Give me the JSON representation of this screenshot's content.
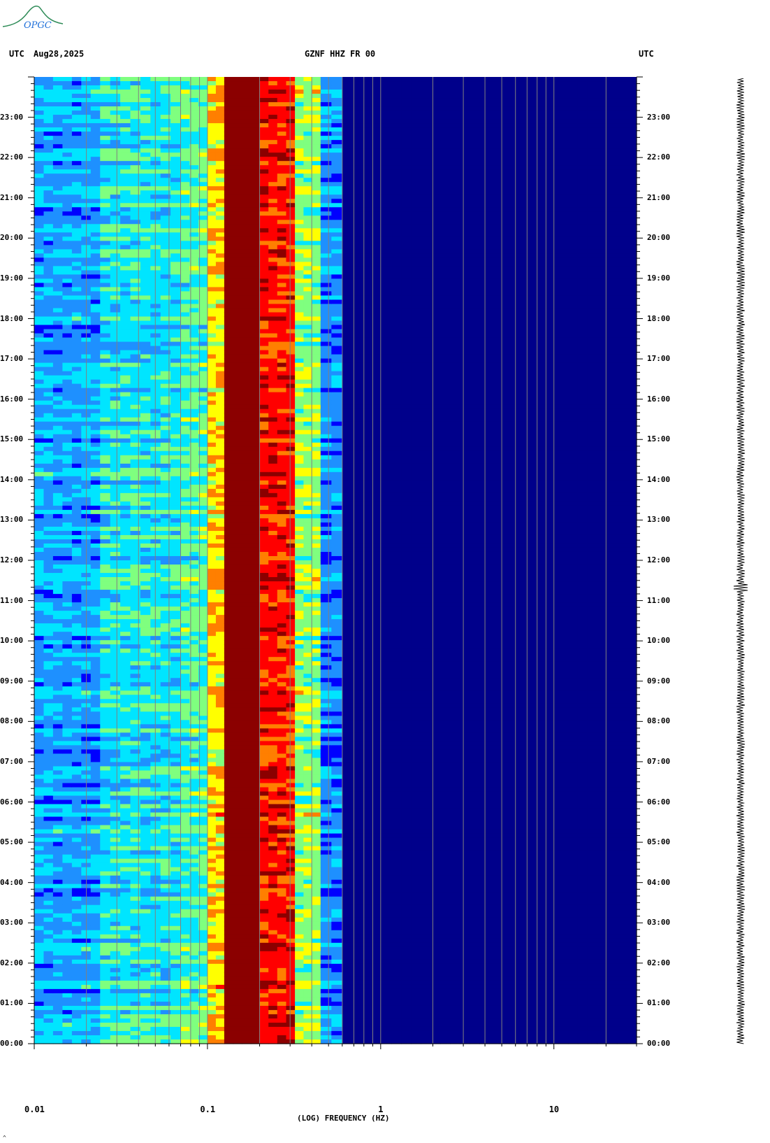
{
  "header": {
    "left_zone": "UTC",
    "date": "Aug28,2025",
    "station": "GZNF HHZ FR 00",
    "right_zone": "UTC"
  },
  "logo": {
    "text": "OPGC"
  },
  "chart_data": {
    "type": "heatmap",
    "title": "GZNF HHZ FR 00",
    "xlabel": "(LOG) FREQUENCY (HZ)",
    "x_scale": "log",
    "xlim": [
      0.01,
      30
    ],
    "x_ticks": [
      "0.01",
      "0.1",
      "1",
      "10"
    ],
    "y_ticks": [
      "00:00",
      "01:00",
      "02:00",
      "03:00",
      "04:00",
      "05:00",
      "06:00",
      "07:00",
      "08:00",
      "09:00",
      "10:00",
      "11:00",
      "12:00",
      "13:00",
      "14:00",
      "15:00",
      "16:00",
      "17:00",
      "18:00",
      "19:00",
      "20:00",
      "21:00",
      "22:00",
      "23:00"
    ],
    "ylim_hours": [
      0,
      24
    ],
    "colormap": [
      "#00008b",
      "#0000ff",
      "#1e90ff",
      "#00e5ff",
      "#7fff7f",
      "#ffff00",
      "#ff7f00",
      "#ff0000",
      "#8b0000"
    ],
    "description_bands": [
      {
        "from_hz": 0.01,
        "to_hz": 0.024,
        "level": 2.3
      },
      {
        "from_hz": 0.024,
        "to_hz": 0.07,
        "level": 3.1
      },
      {
        "from_hz": 0.07,
        "to_hz": 0.1,
        "level": 3.6
      },
      {
        "from_hz": 0.1,
        "to_hz": 0.125,
        "level": 5.2
      },
      {
        "from_hz": 0.125,
        "to_hz": 0.2,
        "level": 8.0
      },
      {
        "from_hz": 0.2,
        "to_hz": 0.32,
        "level": 6.9
      },
      {
        "from_hz": 0.32,
        "to_hz": 0.45,
        "level": 4.2
      },
      {
        "from_hz": 0.45,
        "to_hz": 0.6,
        "level": 2.0
      },
      {
        "from_hz": 0.6,
        "to_hz": 30,
        "level": 0.3
      }
    ]
  }
}
